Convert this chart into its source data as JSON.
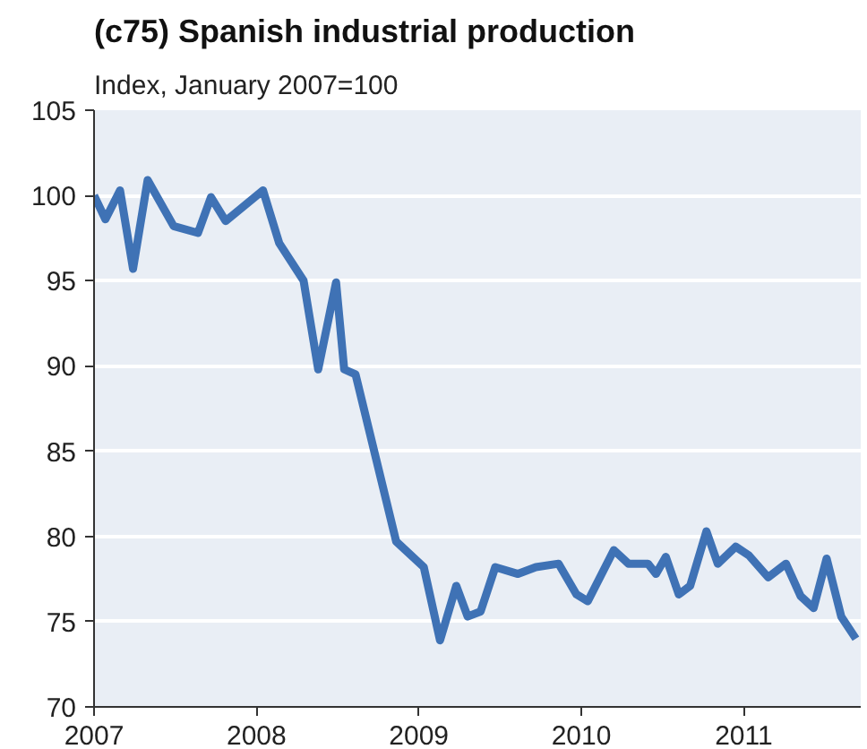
{
  "chart_data": {
    "type": "line",
    "title": "(c75) Spanish industrial production",
    "subtitle": "Index, January 2007=100",
    "x": [
      2007.0,
      2007.07,
      2007.16,
      2007.24,
      2007.33,
      2007.49,
      2007.64,
      2007.72,
      2007.81,
      2008.04,
      2008.14,
      2008.29,
      2008.38,
      2008.49,
      2008.54,
      2008.61,
      2008.86,
      2009.03,
      2009.13,
      2009.23,
      2009.3,
      2009.38,
      2009.47,
      2009.61,
      2009.72,
      2009.86,
      2009.97,
      2010.04,
      2010.2,
      2010.29,
      2010.41,
      2010.46,
      2010.52,
      2010.6,
      2010.67,
      2010.77,
      2010.84,
      2010.95,
      2011.03,
      2011.15,
      2011.26,
      2011.35,
      2011.43,
      2011.51,
      2011.6,
      2011.69
    ],
    "series": [
      {
        "color": "#3f72b5",
        "values": [
          100,
          98.6,
          100.3,
          95.7,
          100.9,
          98.2,
          97.8,
          99.9,
          98.5,
          100.3,
          97.2,
          95,
          89.8,
          94.9,
          89.8,
          89.5,
          79.7,
          78.2,
          73.9,
          77.1,
          75.3,
          75.6,
          78.2,
          77.8,
          78.2,
          78.4,
          76.6,
          76.2,
          79.2,
          78.4,
          78.4,
          77.8,
          78.8,
          76.6,
          77.1,
          80.3,
          78.4,
          79.4,
          78.9,
          77.6,
          78.4,
          76.5,
          75.8,
          78.7,
          75.3,
          74
        ]
      }
    ],
    "xlim": [
      2007,
      2011.72
    ],
    "xticks": [
      2007,
      2008,
      2009,
      2010,
      2011
    ],
    "ylim": [
      70,
      105
    ],
    "yticks": [
      70,
      75,
      80,
      85,
      90,
      95,
      100,
      105
    ],
    "grid": "y",
    "marker": "none",
    "line_style": "solid"
  }
}
